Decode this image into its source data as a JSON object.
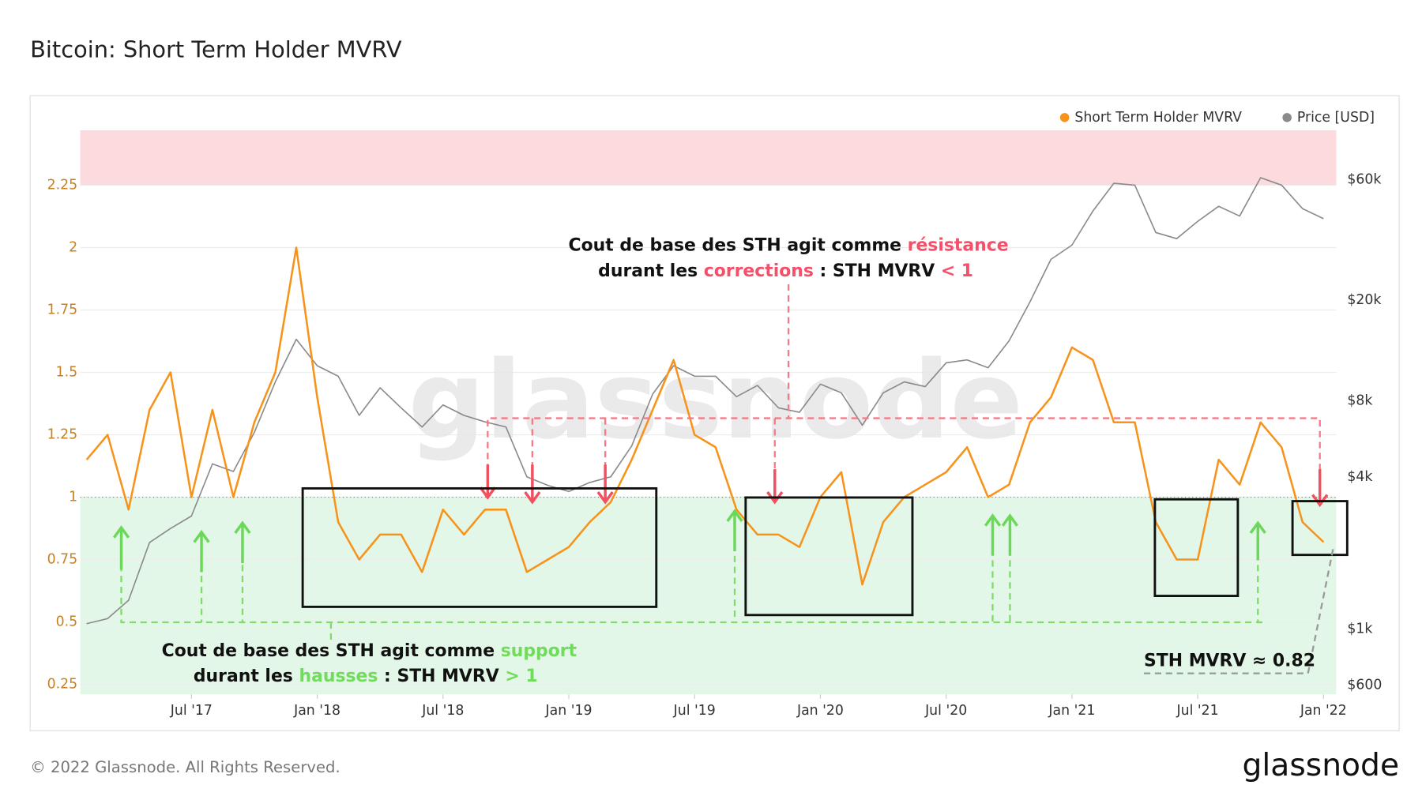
{
  "title": "Bitcoin: Short Term Holder MVRV",
  "footer": "© 2022 Glassnode. All Rights Reserved.",
  "brand": "glassnode",
  "watermark": "glassnode",
  "chart_data": {
    "type": "line",
    "legend": "top-right",
    "grid": true,
    "x": [
      "2017-02",
      "2017-03",
      "2017-04",
      "2017-05",
      "2017-06",
      "2017-07",
      "2017-08",
      "2017-09",
      "2017-10",
      "2017-11",
      "2017-12",
      "2018-01",
      "2018-02",
      "2018-03",
      "2018-04",
      "2018-05",
      "2018-06",
      "2018-07",
      "2018-08",
      "2018-09",
      "2018-10",
      "2018-11",
      "2018-12",
      "2019-01",
      "2019-02",
      "2019-03",
      "2019-04",
      "2019-05",
      "2019-06",
      "2019-07",
      "2019-08",
      "2019-09",
      "2019-10",
      "2019-11",
      "2019-12",
      "2020-01",
      "2020-02",
      "2020-03",
      "2020-04",
      "2020-05",
      "2020-06",
      "2020-07",
      "2020-08",
      "2020-09",
      "2020-10",
      "2020-11",
      "2020-12",
      "2021-01",
      "2021-02",
      "2021-03",
      "2021-04",
      "2021-05",
      "2021-06",
      "2021-07",
      "2021-08",
      "2021-09",
      "2021-10",
      "2021-11",
      "2021-12",
      "2022-01"
    ],
    "xlim": [
      "2017-02",
      "2022-01"
    ],
    "xticks": [
      {
        "value": "2017-07",
        "label": "Jul '17"
      },
      {
        "value": "2018-01",
        "label": "Jan '18"
      },
      {
        "value": "2018-07",
        "label": "Jul '18"
      },
      {
        "value": "2019-01",
        "label": "Jan '19"
      },
      {
        "value": "2019-07",
        "label": "Jul '19"
      },
      {
        "value": "2020-01",
        "label": "Jan '20"
      },
      {
        "value": "2020-07",
        "label": "Jul '20"
      },
      {
        "value": "2021-01",
        "label": "Jan '21"
      },
      {
        "value": "2021-07",
        "label": "Jul '21"
      },
      {
        "value": "2022-01",
        "label": "Jan '22"
      }
    ],
    "ylim": [
      0.21,
      2.47
    ],
    "yticks": [
      0.25,
      0.5,
      0.75,
      1,
      1.25,
      1.5,
      1.75,
      2,
      2.25
    ],
    "y2lim": [
      552,
      93900
    ],
    "y2scale": "log",
    "y2ticks": [
      {
        "value": 600,
        "label": "$600"
      },
      {
        "value": 1000,
        "label": "$1k"
      },
      {
        "value": 4000,
        "label": "$4k"
      },
      {
        "value": 8000,
        "label": "$8k"
      },
      {
        "value": 20000,
        "label": "$20k"
      },
      {
        "value": 60000,
        "label": "$60k"
      }
    ],
    "reference_line": 1,
    "bands": [
      {
        "from": 2.25,
        "to": 2.47,
        "color": "#fcdadd"
      },
      {
        "from": 0.21,
        "to": 1,
        "color": "#e3f7e8"
      }
    ],
    "series": [
      {
        "name": "Short Term Holder MVRV",
        "color": "#f7931a",
        "values": [
          1.15,
          1.25,
          0.95,
          1.35,
          1.5,
          1.0,
          1.35,
          1.0,
          1.3,
          1.5,
          2.0,
          1.4,
          0.9,
          0.75,
          0.85,
          0.85,
          0.7,
          0.95,
          0.85,
          0.95,
          0.95,
          0.7,
          0.75,
          0.8,
          0.9,
          0.98,
          1.15,
          1.35,
          1.55,
          1.25,
          1.2,
          0.95,
          0.85,
          0.85,
          0.8,
          1.0,
          1.1,
          0.65,
          0.9,
          1.0,
          1.05,
          1.1,
          1.2,
          1.0,
          1.05,
          1.3,
          1.4,
          1.6,
          1.55,
          1.3,
          1.3,
          0.9,
          0.75,
          0.75,
          1.15,
          1.05,
          1.3,
          1.2,
          0.9,
          0.82
        ]
      },
      {
        "name": "Price [USD]",
        "color": "#8a8a8a",
        "axis": "y2",
        "values": [
          1050,
          1100,
          1300,
          2200,
          2500,
          2800,
          4500,
          4200,
          6000,
          9500,
          14000,
          11000,
          10000,
          7000,
          9000,
          7500,
          6300,
          7700,
          7000,
          6600,
          6300,
          4000,
          3700,
          3500,
          3800,
          4000,
          5300,
          8500,
          11000,
          10000,
          10000,
          8300,
          9200,
          7500,
          7200,
          9300,
          8600,
          6400,
          8600,
          9500,
          9100,
          11300,
          11600,
          10800,
          13800,
          19700,
          29000,
          33000,
          45000,
          58000,
          57000,
          37000,
          35000,
          41000,
          47000,
          43000,
          61000,
          57000,
          46000,
          42000
        ]
      }
    ],
    "annotations": {
      "resistance": {
        "line1": [
          "Cout de base des STH agit comme ",
          "résistance"
        ],
        "line2": [
          "durant les ",
          "corrections",
          " : STH MVRV ",
          "< 1"
        ]
      },
      "support": {
        "line1": [
          "Cout de base des STH agit comme ",
          "support"
        ],
        "line2": [
          "durant les ",
          "hausses",
          " : STH MVRV ",
          "> 1"
        ]
      },
      "current": "STH MVRV ≈ 0.82"
    }
  }
}
